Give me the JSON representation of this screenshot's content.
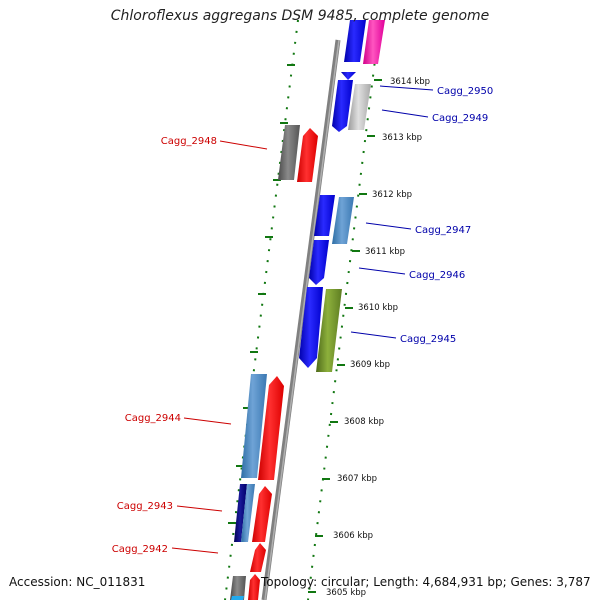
{
  "title": "Chloroflexus aggregans DSM 9485, complete genome",
  "footer": {
    "accession": "Accession: NC_011831",
    "topology": "Topology: circular; Length: 4,684,931 bp; Genes: 3,787"
  },
  "colors": {
    "reverse_label": "#cc0000",
    "forward_label": "#0000aa",
    "tick": "#117711",
    "backbone": "#808080"
  },
  "kbp_ticks": [
    "3614 kbp",
    "3613 kbp",
    "3612 kbp",
    "3611 kbp",
    "3610 kbp",
    "3609 kbp",
    "3608 kbp",
    "3607 kbp",
    "3606 kbp",
    "3605 kbp"
  ],
  "genes_forward": [
    {
      "name": "Cagg_2950"
    },
    {
      "name": "Cagg_2949"
    },
    {
      "name": "Cagg_2947"
    },
    {
      "name": "Cagg_2946"
    },
    {
      "name": "Cagg_2945"
    }
  ],
  "genes_reverse": [
    {
      "name": "Cagg_2948"
    },
    {
      "name": "Cagg_2944"
    },
    {
      "name": "Cagg_2943"
    },
    {
      "name": "Cagg_2942"
    }
  ]
}
